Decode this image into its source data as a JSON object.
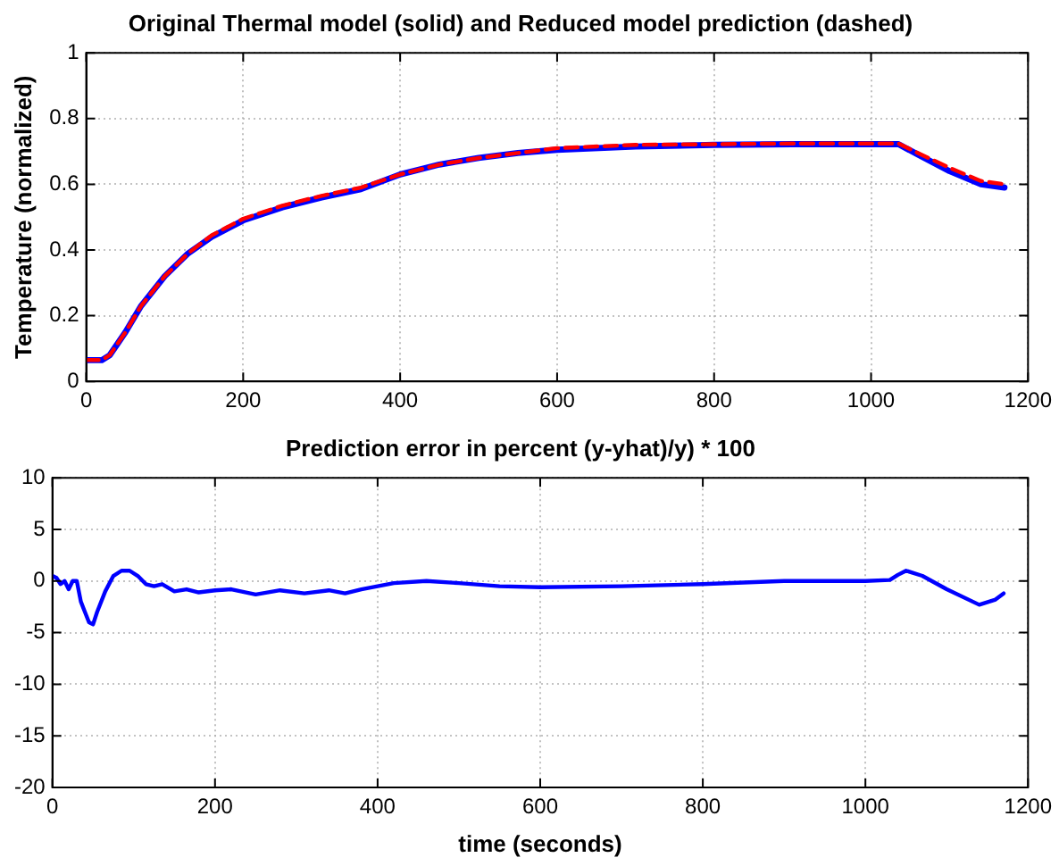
{
  "chart_data": [
    {
      "type": "line",
      "title": "Original Thermal model (solid) and Reduced model prediction (dashed)",
      "ylabel": "Temperature (normalized)",
      "xlim": [
        0,
        1200
      ],
      "xticks": [
        0,
        200,
        400,
        600,
        800,
        1000,
        1200
      ],
      "ylim": [
        0,
        1
      ],
      "yticks": [
        0,
        0.2,
        0.4,
        0.6,
        0.8,
        1
      ],
      "grid": true,
      "legend": false,
      "marker": "none",
      "series": [
        {
          "color": "#0000ff",
          "line_style": "solid",
          "x": [
            0,
            20,
            30,
            50,
            70,
            100,
            130,
            160,
            200,
            250,
            300,
            350,
            400,
            450,
            500,
            550,
            600,
            700,
            800,
            900,
            1000,
            1035,
            1060,
            1100,
            1140,
            1170
          ],
          "values": [
            0.065,
            0.065,
            0.08,
            0.15,
            0.23,
            0.32,
            0.39,
            0.44,
            0.49,
            0.53,
            0.56,
            0.585,
            0.63,
            0.66,
            0.68,
            0.695,
            0.705,
            0.715,
            0.72,
            0.722,
            0.722,
            0.722,
            0.69,
            0.64,
            0.6,
            0.59
          ]
        },
        {
          "color": "#ff0000",
          "line_style": "dashed",
          "x": [
            0,
            20,
            30,
            50,
            70,
            100,
            130,
            160,
            200,
            250,
            300,
            350,
            400,
            450,
            500,
            550,
            600,
            700,
            800,
            900,
            1000,
            1035,
            1060,
            1100,
            1140,
            1170
          ],
          "values": [
            0.065,
            0.065,
            0.08,
            0.15,
            0.23,
            0.32,
            0.39,
            0.445,
            0.495,
            0.535,
            0.565,
            0.59,
            0.63,
            0.66,
            0.68,
            0.695,
            0.71,
            0.72,
            0.722,
            0.724,
            0.724,
            0.724,
            0.695,
            0.65,
            0.61,
            0.6
          ]
        }
      ]
    },
    {
      "type": "line",
      "title": "Prediction error in percent (y-yhat)/y) * 100",
      "xlabel": "time (seconds)",
      "xlim": [
        0,
        1200
      ],
      "xticks": [
        0,
        200,
        400,
        600,
        800,
        1000,
        1200
      ],
      "ylim": [
        -20,
        10
      ],
      "yticks": [
        -20,
        -15,
        -10,
        -5,
        0,
        5,
        10
      ],
      "grid": true,
      "legend": false,
      "marker": "none",
      "series": [
        {
          "color": "#0000ff",
          "line_style": "solid",
          "x": [
            0,
            5,
            10,
            15,
            20,
            25,
            30,
            35,
            40,
            45,
            50,
            55,
            65,
            75,
            85,
            95,
            105,
            115,
            125,
            135,
            150,
            165,
            180,
            200,
            220,
            250,
            280,
            310,
            340,
            360,
            380,
            420,
            460,
            500,
            550,
            600,
            700,
            800,
            900,
            1000,
            1030,
            1040,
            1050,
            1070,
            1100,
            1140,
            1160,
            1170
          ],
          "values": [
            0.5,
            0.3,
            -0.3,
            0,
            -0.8,
            0,
            0,
            -2,
            -3,
            -4,
            -4.2,
            -3,
            -1,
            0.5,
            1,
            1,
            0.5,
            -0.3,
            -0.5,
            -0.3,
            -1,
            -0.8,
            -1.1,
            -0.9,
            -0.8,
            -1.3,
            -0.9,
            -1.2,
            -0.9,
            -1.2,
            -0.8,
            -0.2,
            0,
            -0.2,
            -0.5,
            -0.6,
            -0.5,
            -0.3,
            0,
            0,
            0.1,
            0.6,
            1,
            0.5,
            -0.8,
            -2.3,
            -1.8,
            -1.2
          ]
        }
      ]
    }
  ]
}
